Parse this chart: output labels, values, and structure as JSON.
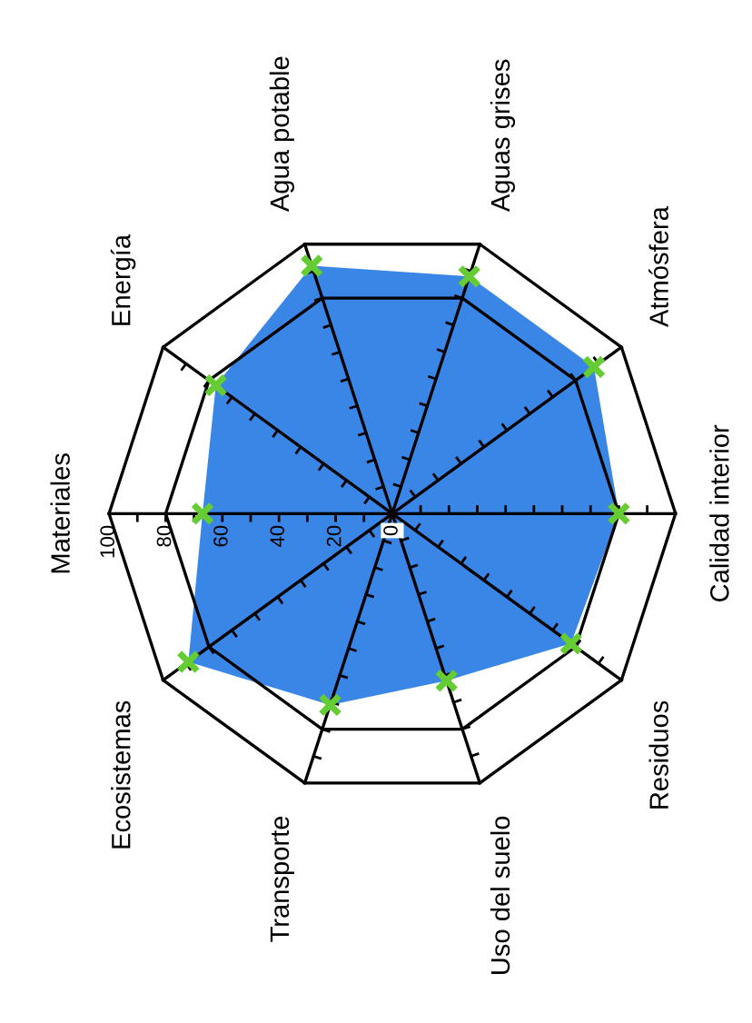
{
  "chart_data": {
    "type": "radar",
    "categories": [
      "Materiales",
      "Energía",
      "Agua potable",
      "Aguas grises",
      "Atmósfera",
      "Calidad interior",
      "Residuos",
      "Uso del suelo",
      "Transporte",
      "Ecosistemas"
    ],
    "series": [
      {
        "color": "#3a86e6",
        "values": [
          67,
          77,
          92,
          88,
          88,
          80,
          78,
          62,
          71,
          89
        ],
        "colors": [
          "#66cc33",
          "#66cc33",
          "#66cc33",
          "#66cc33",
          "#66cc33",
          "#66cc33",
          "#66cc33",
          "#66cc33",
          "#66cc33",
          "#66cc33"
        ]
      }
    ],
    "ylim": [
      0,
      100
    ],
    "yticks": [
      0,
      20,
      40,
      60,
      80,
      100
    ],
    "marker": "cross",
    "grid": true
  }
}
